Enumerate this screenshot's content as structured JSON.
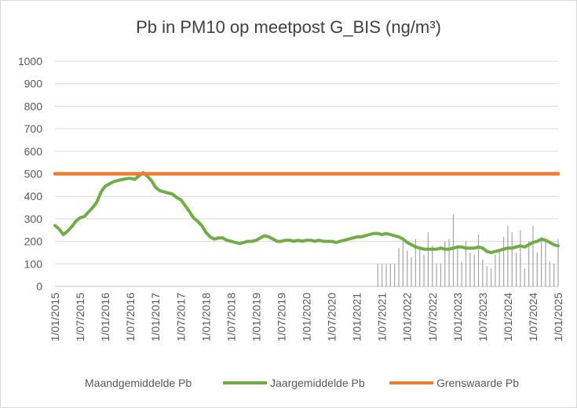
{
  "chart_data": {
    "type": "line",
    "title": "Pb in PM10 op meetpost G_BIS (ng/m³)",
    "ylim": [
      0,
      1000
    ],
    "yticks": [
      0,
      100,
      200,
      300,
      400,
      500,
      600,
      700,
      800,
      900,
      1000
    ],
    "xticks": [
      "1/01/2015",
      "1/07/2015",
      "1/01/2016",
      "1/07/2016",
      "1/01/2017",
      "1/07/2017",
      "1/01/2018",
      "1/07/2018",
      "1/01/2019",
      "1/07/2019",
      "1/01/2020",
      "1/07/2020",
      "1/01/2021",
      "1/07/2021",
      "1/01/2022",
      "1/07/2022",
      "1/01/2023",
      "1/07/2023",
      "1/01/2024",
      "1/07/2024",
      "1/01/2025"
    ],
    "grid": true,
    "legend_position": "bottom",
    "series": [
      {
        "name": "Maandgemiddelde Pb",
        "kind": "bar",
        "color": "#a5a5a5",
        "x": [
          "2021-06",
          "2021-07",
          "2021-08",
          "2021-09",
          "2021-10",
          "2021-11",
          "2021-12",
          "2022-01",
          "2022-02",
          "2022-03",
          "2022-04",
          "2022-05",
          "2022-06",
          "2022-07",
          "2022-08",
          "2022-09",
          "2022-10",
          "2022-11",
          "2022-12",
          "2023-01",
          "2023-02",
          "2023-03",
          "2023-04",
          "2023-05",
          "2023-06",
          "2023-07",
          "2023-08",
          "2023-09",
          "2023-10",
          "2023-11",
          "2023-12",
          "2024-01",
          "2024-02",
          "2024-03",
          "2024-04",
          "2024-05",
          "2024-06",
          "2024-07",
          "2024-08",
          "2024-09",
          "2024-10",
          "2024-11",
          "2024-12",
          "2025-01"
        ],
        "values": [
          100,
          100,
          100,
          100,
          100,
          170,
          200,
          160,
          130,
          210,
          170,
          140,
          240,
          180,
          100,
          100,
          200,
          210,
          320,
          180,
          110,
          200,
          150,
          140,
          230,
          120,
          90,
          80,
          140,
          160,
          220,
          270,
          240,
          150,
          250,
          80,
          200,
          270,
          150,
          220,
          200,
          110,
          100,
          210
        ]
      },
      {
        "name": "Jaargemiddelde Pb",
        "kind": "line",
        "color": "#70ad47",
        "x": [
          "2015-01",
          "2015-02",
          "2015-03",
          "2015-04",
          "2015-05",
          "2015-06",
          "2015-07",
          "2015-08",
          "2015-09",
          "2015-10",
          "2015-11",
          "2015-12",
          "2016-01",
          "2016-02",
          "2016-03",
          "2016-04",
          "2016-05",
          "2016-06",
          "2016-07",
          "2016-08",
          "2016-09",
          "2016-10",
          "2016-11",
          "2016-12",
          "2017-01",
          "2017-02",
          "2017-03",
          "2017-04",
          "2017-05",
          "2017-06",
          "2017-07",
          "2017-08",
          "2017-09",
          "2017-10",
          "2017-11",
          "2017-12",
          "2018-01",
          "2018-02",
          "2018-03",
          "2018-04",
          "2018-05",
          "2018-06",
          "2018-07",
          "2018-08",
          "2018-09",
          "2018-10",
          "2018-11",
          "2018-12",
          "2019-01",
          "2019-02",
          "2019-03",
          "2019-04",
          "2019-05",
          "2019-06",
          "2019-07",
          "2019-08",
          "2019-09",
          "2019-10",
          "2019-11",
          "2019-12",
          "2020-01",
          "2020-02",
          "2020-03",
          "2020-04",
          "2020-05",
          "2020-06",
          "2020-07",
          "2020-08",
          "2020-09",
          "2020-10",
          "2020-11",
          "2020-12",
          "2021-01",
          "2021-02",
          "2021-03",
          "2021-04",
          "2021-05",
          "2021-06",
          "2021-07",
          "2021-08",
          "2021-09",
          "2021-10",
          "2021-11",
          "2021-12",
          "2022-01",
          "2022-02",
          "2022-03",
          "2022-04",
          "2022-05",
          "2022-06",
          "2022-07",
          "2022-08",
          "2022-09",
          "2022-10",
          "2022-11",
          "2022-12",
          "2023-01",
          "2023-02",
          "2023-03",
          "2023-04",
          "2023-05",
          "2023-06",
          "2023-07",
          "2023-08",
          "2023-09",
          "2023-10",
          "2023-11",
          "2023-12",
          "2024-01",
          "2024-02",
          "2024-03",
          "2024-04",
          "2024-05",
          "2024-06",
          "2024-07",
          "2024-08",
          "2024-09",
          "2024-10",
          "2024-11",
          "2024-12",
          "2025-01"
        ],
        "values": [
          270,
          255,
          230,
          245,
          265,
          290,
          305,
          310,
          330,
          350,
          375,
          420,
          445,
          455,
          465,
          470,
          475,
          478,
          480,
          475,
          490,
          505,
          490,
          470,
          440,
          425,
          420,
          415,
          410,
          395,
          385,
          360,
          335,
          305,
          290,
          270,
          240,
          220,
          210,
          215,
          215,
          205,
          200,
          195,
          190,
          195,
          200,
          200,
          205,
          215,
          225,
          220,
          210,
          200,
          200,
          205,
          205,
          200,
          205,
          200,
          205,
          205,
          200,
          205,
          200,
          200,
          200,
          195,
          200,
          205,
          210,
          215,
          220,
          220,
          225,
          230,
          235,
          235,
          230,
          235,
          230,
          225,
          220,
          210,
          195,
          185,
          175,
          170,
          165,
          165,
          165,
          165,
          170,
          165,
          165,
          170,
          175,
          175,
          170,
          170,
          170,
          175,
          170,
          155,
          150,
          155,
          160,
          165,
          170,
          170,
          175,
          180,
          175,
          185,
          195,
          200,
          210,
          205,
          195,
          185,
          180
        ]
      },
      {
        "name": "Grenswaarde Pb",
        "kind": "line",
        "color": "#ed7d31",
        "x": [
          "2015-01",
          "2025-01"
        ],
        "values": [
          500,
          500
        ]
      }
    ]
  }
}
